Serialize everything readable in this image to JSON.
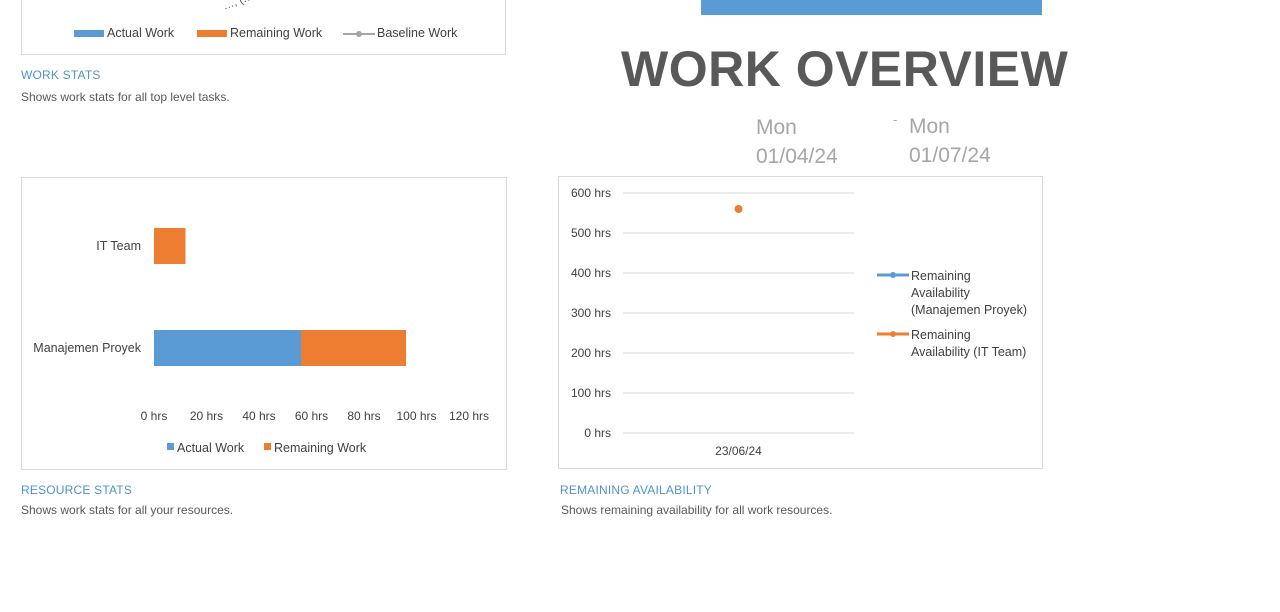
{
  "header": {
    "title": "WORK OVERVIEW",
    "start_date": [
      "Mon",
      "01/04/24"
    ],
    "separator": "-",
    "end_date": [
      "Mon",
      "01/07/24"
    ],
    "banner_color": "#5b9bd5"
  },
  "work_chart": {
    "legend": [
      "Actual Work",
      "Remaining Work",
      "Baseline Work"
    ],
    "cut_text": "…, (… ∤"
  },
  "work_stats": {
    "title": "WORK STATS",
    "description": "Shows work stats for all top level tasks."
  },
  "resource_stats": {
    "title": "RESOURCE STATS",
    "description": "Shows work stats for all your resources."
  },
  "remaining_availability": {
    "title": "REMAINING AVAILABILITY",
    "description": "Shows remaining availability for all work resources."
  },
  "colors": {
    "actual": "#5b9bd5",
    "remaining": "#ed7d31",
    "baseline": "#a5a5a5"
  },
  "chart_data": [
    {
      "type": "bar",
      "orientation": "horizontal",
      "stacked": true,
      "categories": [
        "IT Team",
        "Manajemen Proyek"
      ],
      "series": [
        {
          "name": "Actual Work",
          "values": [
            0,
            56
          ]
        },
        {
          "name": "Remaining Work",
          "values": [
            12,
            40
          ]
        }
      ],
      "x_ticks": [
        "0 hrs",
        "20 hrs",
        "40 hrs",
        "60 hrs",
        "80 hrs",
        "100 hrs",
        "120 hrs"
      ],
      "xlim": [
        0,
        120
      ],
      "legend": [
        "Actual Work",
        "Remaining Work"
      ],
      "legend_position": "bottom",
      "grid": false
    },
    {
      "type": "line",
      "categories": [
        "23/06/24"
      ],
      "series": [
        {
          "name": "Remaining Availability (Manajemen Proyek)",
          "values": [
            null
          ]
        },
        {
          "name": "Remaining Availability (IT Team)",
          "values": [
            560
          ]
        }
      ],
      "y_ticks": [
        "0 hrs",
        "100 hrs",
        "200 hrs",
        "300 hrs",
        "400 hrs",
        "500 hrs",
        "600 hrs"
      ],
      "ylim": [
        0,
        600
      ],
      "legend": [
        [
          "Remaining",
          "Availability",
          "(Manajemen Proyek)"
        ],
        [
          "Remaining",
          "Availability (IT Team)"
        ]
      ],
      "legend_position": "right",
      "grid": true
    }
  ]
}
